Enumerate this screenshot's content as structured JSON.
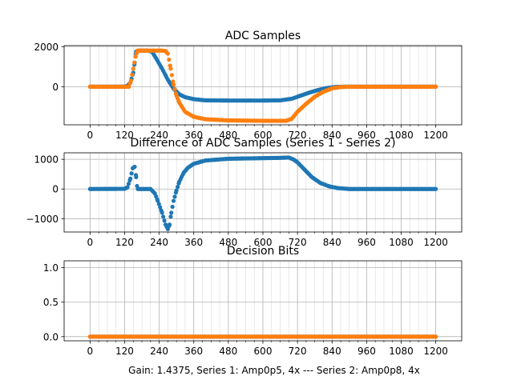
{
  "footer_text": "Gain: 1.4375, Series 1: Amp0p5, 4x --- Series 2: Amp0p8, 4x",
  "colors": {
    "series1": "#1f77b4",
    "series2": "#ff7f0e",
    "grid": "#b0b0b0"
  },
  "chart_data": [
    {
      "type": "scatter",
      "title": "ADC Samples",
      "xlim": [
        -90,
        1290
      ],
      "ylim": [
        -1900,
        2050
      ],
      "xticks": [
        0,
        120,
        240,
        360,
        480,
        600,
        720,
        840,
        960,
        1080,
        1200
      ],
      "yticks": [
        -2000,
        0,
        2000
      ],
      "ytick_labels": [
        "",
        "0",
        "2000"
      ],
      "grid": true,
      "series": [
        {
          "color": "#1f77b4",
          "points": [
            [
              0,
              0
            ],
            [
              100,
              0
            ],
            [
              120,
              5
            ],
            [
              130,
              40
            ],
            [
              140,
              200
            ],
            [
              150,
              700
            ],
            [
              155,
              1200
            ],
            [
              160,
              1750
            ],
            [
              170,
              1800
            ],
            [
              200,
              1800
            ],
            [
              215,
              1750
            ],
            [
              230,
              1400
            ],
            [
              250,
              900
            ],
            [
              270,
              350
            ],
            [
              290,
              -100
            ],
            [
              310,
              -380
            ],
            [
              330,
              -520
            ],
            [
              360,
              -620
            ],
            [
              400,
              -680
            ],
            [
              480,
              -690
            ],
            [
              600,
              -690
            ],
            [
              660,
              -680
            ],
            [
              700,
              -600
            ],
            [
              730,
              -450
            ],
            [
              760,
              -300
            ],
            [
              790,
              -170
            ],
            [
              820,
              -70
            ],
            [
              850,
              -15
            ],
            [
              880,
              0
            ],
            [
              1200,
              0
            ]
          ]
        },
        {
          "color": "#ff7f0e",
          "points": [
            [
              0,
              0
            ],
            [
              135,
              0
            ],
            [
              142,
              300
            ],
            [
              150,
              900
            ],
            [
              158,
              1500
            ],
            [
              165,
              1800
            ],
            [
              250,
              1800
            ],
            [
              262,
              1780
            ],
            [
              270,
              1650
            ],
            [
              280,
              900
            ],
            [
              290,
              100
            ],
            [
              300,
              -450
            ],
            [
              310,
              -800
            ],
            [
              330,
              -1250
            ],
            [
              360,
              -1500
            ],
            [
              400,
              -1620
            ],
            [
              480,
              -1680
            ],
            [
              600,
              -1700
            ],
            [
              680,
              -1700
            ],
            [
              700,
              -1600
            ],
            [
              720,
              -1250
            ],
            [
              750,
              -850
            ],
            [
              780,
              -500
            ],
            [
              810,
              -250
            ],
            [
              840,
              -80
            ],
            [
              870,
              -15
            ],
            [
              900,
              0
            ],
            [
              1200,
              0
            ]
          ]
        }
      ]
    },
    {
      "type": "scatter",
      "title": "Difference of ADC Samples (Series 1 - Series 2)",
      "xlim": [
        -90,
        1290
      ],
      "ylim": [
        -1450,
        1220
      ],
      "xticks": [
        0,
        120,
        240,
        360,
        480,
        600,
        720,
        840,
        960,
        1080,
        1200
      ],
      "yticks": [
        -1000,
        0,
        1000
      ],
      "ytick_labels": [
        "−1000",
        "0",
        "1000"
      ],
      "grid": true,
      "series": [
        {
          "color": "#1f77b4",
          "points": [
            [
              0,
              0
            ],
            [
              120,
              5
            ],
            [
              130,
              60
            ],
            [
              140,
              350
            ],
            [
              148,
              700
            ],
            [
              155,
              750
            ],
            [
              160,
              400
            ],
            [
              163,
              100
            ],
            [
              166,
              0
            ],
            [
              210,
              0
            ],
            [
              225,
              -150
            ],
            [
              235,
              -400
            ],
            [
              250,
              -800
            ],
            [
              262,
              -1200
            ],
            [
              270,
              -1350
            ],
            [
              276,
              -1200
            ],
            [
              282,
              -800
            ],
            [
              290,
              -400
            ],
            [
              300,
              -50
            ],
            [
              310,
              250
            ],
            [
              325,
              550
            ],
            [
              340,
              720
            ],
            [
              360,
              850
            ],
            [
              400,
              960
            ],
            [
              480,
              1020
            ],
            [
              600,
              1040
            ],
            [
              660,
              1050
            ],
            [
              690,
              1060
            ],
            [
              705,
              1000
            ],
            [
              720,
              900
            ],
            [
              740,
              700
            ],
            [
              770,
              400
            ],
            [
              800,
              200
            ],
            [
              830,
              90
            ],
            [
              860,
              30
            ],
            [
              900,
              0
            ],
            [
              1200,
              0
            ]
          ]
        }
      ]
    },
    {
      "type": "scatter",
      "title": "Decision Bits",
      "xlim": [
        -90,
        1290
      ],
      "ylim": [
        -0.06,
        1.1
      ],
      "xticks": [
        0,
        120,
        240,
        360,
        480,
        600,
        720,
        840,
        960,
        1080,
        1200
      ],
      "yticks": [
        0,
        0.5,
        1
      ],
      "ytick_labels": [
        "0.0",
        "0.5",
        "1.0"
      ],
      "grid": true,
      "series": [
        {
          "color": "#1f77b4",
          "points": [
            [
              0,
              0
            ],
            [
              1200,
              0
            ]
          ]
        },
        {
          "color": "#ff7f0e",
          "points": [
            [
              0,
              0
            ],
            [
              1200,
              0
            ]
          ]
        }
      ]
    }
  ]
}
